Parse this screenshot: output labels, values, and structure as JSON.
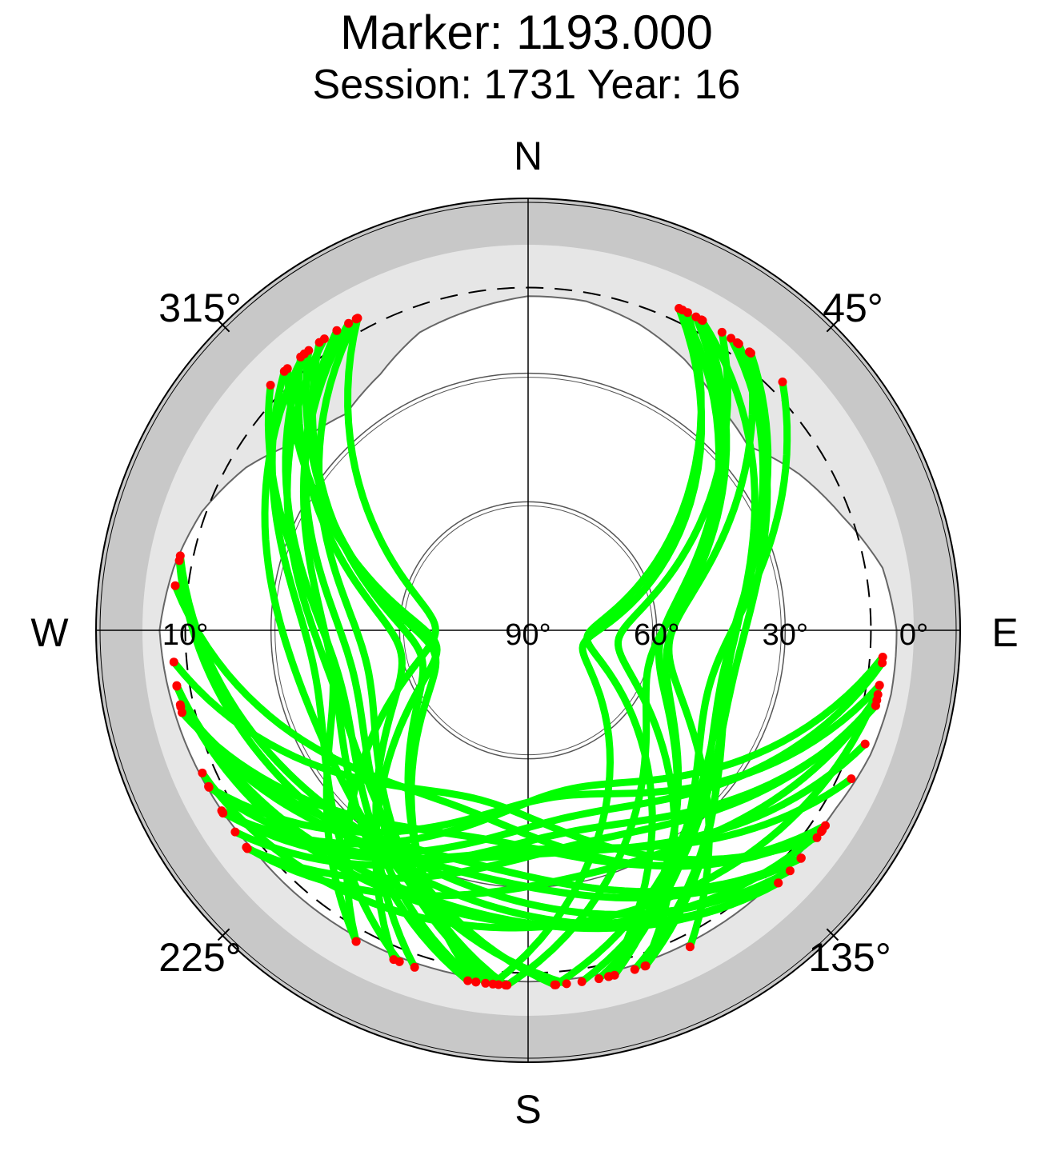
{
  "header": {
    "title": "Marker: 1193.000",
    "subtitle": "Session: 1731 Year: 16"
  },
  "chart_data": {
    "type": "scatter",
    "projection": "polar-skyplot",
    "title": "Marker: 1193.000",
    "subtitle": "Session: 1731 Year: 16",
    "cardinal_labels": {
      "north": "N",
      "east": "E",
      "south": "S",
      "west": "W"
    },
    "azimuth_labels": [
      {
        "azimuth": 45,
        "label": "45°"
      },
      {
        "azimuth": 135,
        "label": "135°"
      },
      {
        "azimuth": 225,
        "label": "225°"
      },
      {
        "azimuth": 315,
        "label": "315°"
      }
    ],
    "elevation_labels": [
      {
        "elevation": 0,
        "side": "east",
        "label": "0°"
      },
      {
        "elevation": 30,
        "side": "east",
        "label": "30°"
      },
      {
        "elevation": 60,
        "side": "east",
        "label": "60°"
      },
      {
        "elevation": 90,
        "side": "east",
        "label": "90°"
      },
      {
        "elevation": 10,
        "side": "west",
        "label": "10°"
      }
    ],
    "elevation_range": [
      0,
      90
    ],
    "cutoff_elevation": 10,
    "reference_circles": [
      30,
      60
    ],
    "colors": {
      "track": "#00ff00",
      "track_end": "#ff0000",
      "outer_ring": "#c8c8c8",
      "mask": "#e6e6e6",
      "visible_sky": "#ffffff"
    },
    "horizon_mask": [
      [
        0,
        12
      ],
      [
        10,
        12
      ],
      [
        20,
        14
      ],
      [
        30,
        17
      ],
      [
        40,
        21
      ],
      [
        50,
        23
      ],
      [
        60,
        17
      ],
      [
        70,
        12
      ],
      [
        80,
        6
      ],
      [
        90,
        4
      ],
      [
        100,
        4
      ],
      [
        110,
        5
      ],
      [
        120,
        7
      ],
      [
        130,
        8
      ],
      [
        140,
        8
      ],
      [
        150,
        8
      ],
      [
        160,
        8
      ],
      [
        170,
        8
      ],
      [
        180,
        8
      ],
      [
        190,
        8
      ],
      [
        200,
        8
      ],
      [
        210,
        8
      ],
      [
        220,
        8
      ],
      [
        230,
        8
      ],
      [
        240,
        7
      ],
      [
        250,
        6
      ],
      [
        260,
        5
      ],
      [
        270,
        4
      ],
      [
        280,
        6
      ],
      [
        290,
        9
      ],
      [
        300,
        14
      ],
      [
        310,
        21
      ],
      [
        320,
        24
      ],
      [
        330,
        21
      ],
      [
        340,
        16
      ],
      [
        350,
        14
      ],
      [
        360,
        12
      ]
    ],
    "track_families": [
      {
        "name": "",
        "start_az": [
          24,
          46,
          3
        ],
        "end_az": [
          150,
          188,
          3
        ],
        "peak_el": [
          36,
          78,
          4
        ],
        "count": 13
      },
      {
        "name": "",
        "start_az": [
          312,
          332,
          2
        ],
        "end_az": [
          170,
          212,
          3
        ],
        "peak_el": [
          34,
          74,
          4
        ],
        "count": 13
      },
      {
        "name": "",
        "start_az": [
          232,
          248,
          2
        ],
        "end_az": [
          92,
          118,
          2
        ],
        "peak_el": [
          20,
          52,
          4
        ],
        "count": 9
      },
      {
        "name": "",
        "start_az": [
          122,
          138,
          2
        ],
        "end_az": [
          256,
          286,
          3
        ],
        "peak_el": [
          22,
          56,
          4
        ],
        "count": 9
      }
    ]
  }
}
